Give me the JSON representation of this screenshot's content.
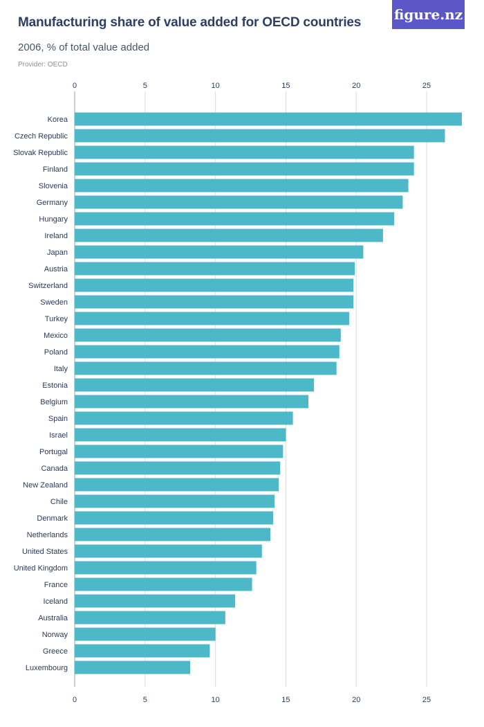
{
  "header": {
    "title": "Manufacturing share of value added for OECD countries",
    "subtitle": "2006, % of total value added",
    "provider": "Provider: OECD",
    "logo": "figure.nz"
  },
  "colors": {
    "bar": "#4db8c7",
    "grid": "#dcdcdc",
    "text": "#2b3a5a"
  },
  "chart_data": {
    "type": "bar",
    "orientation": "horizontal",
    "title": "Manufacturing share of value added for OECD countries",
    "subtitle": "2006, % of total value added",
    "xlim": [
      0,
      27.7
    ],
    "xticks": [
      0,
      5,
      10,
      15,
      20,
      25
    ],
    "grid": true,
    "categories": [
      "Korea",
      "Czech Republic",
      "Slovak Republic",
      "Finland",
      "Slovenia",
      "Germany",
      "Hungary",
      "Ireland",
      "Japan",
      "Austria",
      "Switzerland",
      "Sweden",
      "Turkey",
      "Mexico",
      "Poland",
      "Italy",
      "Estonia",
      "Belgium",
      "Spain",
      "Israel",
      "Portugal",
      "Canada",
      "New Zealand",
      "Chile",
      "Denmark",
      "Netherlands",
      "United States",
      "United Kingdom",
      "France",
      "Iceland",
      "Australia",
      "Norway",
      "Greece",
      "Luxembourg"
    ],
    "values": [
      27.5,
      26.3,
      24.1,
      24.1,
      23.7,
      23.3,
      22.7,
      21.9,
      20.5,
      19.9,
      19.8,
      19.8,
      19.5,
      18.9,
      18.8,
      18.6,
      17.0,
      16.6,
      15.5,
      15.0,
      14.8,
      14.6,
      14.5,
      14.2,
      14.1,
      13.9,
      13.3,
      12.9,
      12.6,
      11.4,
      10.7,
      10.0,
      9.6,
      8.2
    ]
  }
}
